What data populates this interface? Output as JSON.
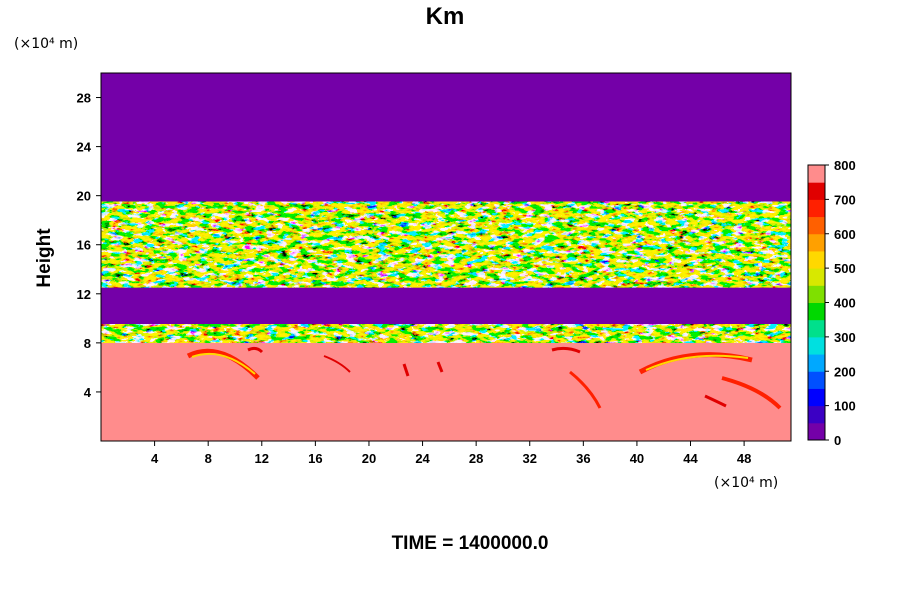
{
  "chart_data": {
    "type": "heatmap",
    "title": "Km",
    "ylabel": "Height",
    "xlabel": "",
    "x_unit": "(×10⁴ m)",
    "y_unit": "(×10⁴ m)",
    "footer": "TIME = 1400000.0",
    "xlim": [
      0,
      51.5
    ],
    "ylim": [
      0,
      30
    ],
    "x_ticks": [
      4,
      8,
      12,
      16,
      20,
      24,
      28,
      32,
      36,
      40,
      44,
      48
    ],
    "y_ticks": [
      4,
      8,
      12,
      16,
      20,
      24,
      28
    ],
    "colorbar": {
      "min": 0,
      "max": 800,
      "ticks": [
        0,
        100,
        200,
        300,
        400,
        500,
        600,
        700,
        800
      ],
      "colors": [
        "#7400a8",
        "#3b00c4",
        "#0000ff",
        "#0050ff",
        "#00a8ff",
        "#00e0e0",
        "#00e08c",
        "#00d800",
        "#7fe000",
        "#d8e800",
        "#ffd800",
        "#ffa000",
        "#ff6000",
        "#ff2000",
        "#e00000",
        "#ff8c8c"
      ]
    },
    "regions": [
      {
        "name": "upper",
        "y_range": [
          19.5,
          30
        ],
        "value": 0
      },
      {
        "name": "turbulent-band-upper",
        "y_range": [
          12.5,
          19.5
        ],
        "value": "mixed 0–800"
      },
      {
        "name": "quiet-band",
        "y_range": [
          9.5,
          12.5
        ],
        "value": 0
      },
      {
        "name": "turbulent-band-lower",
        "y_range": [
          8,
          9.5
        ],
        "value": "mixed 0–800"
      },
      {
        "name": "lower",
        "y_range": [
          0,
          8
        ],
        "value": 800
      }
    ]
  }
}
